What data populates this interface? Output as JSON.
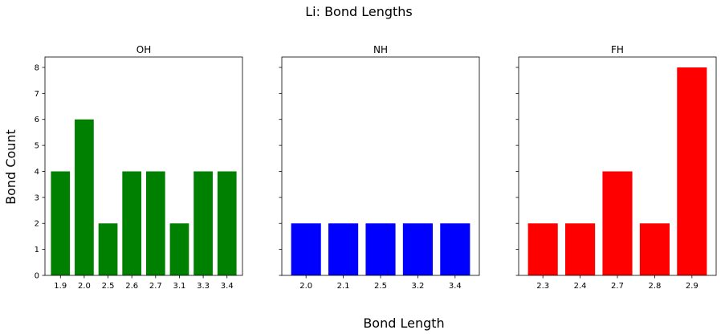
{
  "chart_data": {
    "type": "bar",
    "title": "Li: Bond Lengths",
    "xlabel": "Bond Length",
    "ylabel": "Bond Count",
    "ylim": [
      0,
      8.4
    ],
    "yticks": [
      0,
      1,
      2,
      3,
      4,
      5,
      6,
      7,
      8
    ],
    "sharey": true,
    "grid": false,
    "panels": [
      {
        "title": "OH",
        "color": "#008000",
        "categories": [
          "1.9",
          "2.0",
          "2.5",
          "2.6",
          "2.7",
          "3.1",
          "3.3",
          "3.4"
        ],
        "values": [
          4,
          6,
          2,
          4,
          4,
          2,
          4,
          4
        ]
      },
      {
        "title": "NH",
        "color": "#0000ff",
        "categories": [
          "2.0",
          "2.1",
          "2.5",
          "3.2",
          "3.4"
        ],
        "values": [
          2,
          2,
          2,
          2,
          2
        ]
      },
      {
        "title": "FH",
        "color": "#ff0000",
        "categories": [
          "2.3",
          "2.4",
          "2.7",
          "2.8",
          "2.9"
        ],
        "values": [
          2,
          2,
          4,
          2,
          8
        ]
      }
    ]
  }
}
